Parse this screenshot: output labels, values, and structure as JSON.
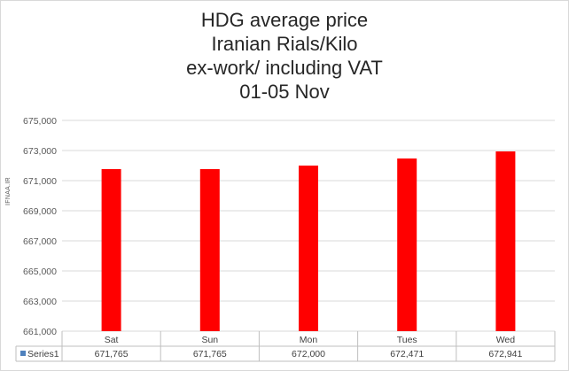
{
  "chart_data": {
    "type": "bar",
    "title": [
      "HDG average price",
      "Iranian Rials/Kilo",
      "ex-work/ including VAT",
      "01-05 Nov"
    ],
    "categories": [
      "Sat",
      "Sun",
      "Mon",
      "Tues",
      "Wed"
    ],
    "series": [
      {
        "name": "Series1",
        "values": [
          671765,
          671765,
          672000,
          672471,
          672941
        ],
        "color": "#ff0000"
      }
    ],
    "data_table": [
      "671,765",
      "671,765",
      "672,000",
      "672,471",
      "672,941"
    ],
    "ylim": [
      661000,
      675000
    ],
    "yticks": [
      "661,000",
      "663,000",
      "665,000",
      "667,000",
      "669,000",
      "671,000",
      "673,000",
      "675,000"
    ],
    "grid": true,
    "watermark": "IFNAA.IR"
  }
}
